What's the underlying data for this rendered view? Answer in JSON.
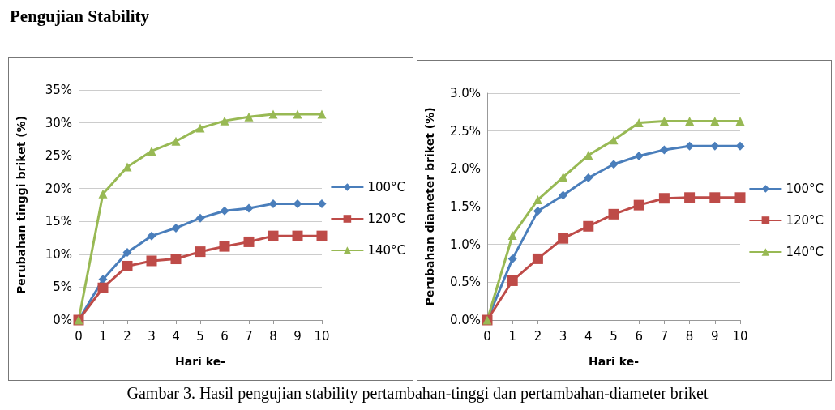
{
  "chart_data": [
    {
      "type": "line",
      "title": "Pengujian Stability",
      "xlabel": "Hari ke-",
      "ylabel": "Perubahan tinggi briket (%)",
      "categories": [
        "0",
        "1",
        "2",
        "3",
        "4",
        "5",
        "6",
        "7",
        "8",
        "9",
        "10"
      ],
      "series": [
        {
          "name": "100°C",
          "color": "#4a7ebb",
          "marker": "diamond",
          "values": [
            0,
            6.2,
            10.3,
            12.8,
            14.0,
            15.5,
            16.6,
            17.0,
            17.7,
            17.7,
            17.7
          ]
        },
        {
          "name": "120°C",
          "color": "#be4b48",
          "marker": "square",
          "values": [
            0,
            4.9,
            8.2,
            9.0,
            9.3,
            10.4,
            11.2,
            11.9,
            12.8,
            12.8,
            12.8
          ]
        },
        {
          "name": "140°C",
          "color": "#98b954",
          "marker": "triangle",
          "values": [
            0,
            19.2,
            23.3,
            25.7,
            27.2,
            29.2,
            30.3,
            30.9,
            31.3,
            31.3,
            31.3
          ]
        }
      ],
      "ylim": [
        0,
        35
      ],
      "yticks": [
        {
          "value": 0,
          "label": "0%"
        },
        {
          "value": 5,
          "label": "5%"
        },
        {
          "value": 10,
          "label": "10%"
        },
        {
          "value": 15,
          "label": "15%"
        },
        {
          "value": 20,
          "label": "20%"
        },
        {
          "value": 25,
          "label": "25%"
        },
        {
          "value": 30,
          "label": "30%"
        },
        {
          "value": 35,
          "label": "35%"
        }
      ],
      "grid": "y",
      "legend": "right",
      "annotations": [
        "Gambar 3. Hasil pengujian stability pertambahan-tinggi dan pertambahan-diameter briket"
      ]
    },
    {
      "type": "line",
      "xlabel": "Hari ke-",
      "ylabel": "Perubahan diameter briket (%)",
      "categories": [
        "0",
        "1",
        "2",
        "3",
        "4",
        "5",
        "6",
        "7",
        "8",
        "9",
        "10"
      ],
      "series": [
        {
          "name": "100°C",
          "color": "#4a7ebb",
          "marker": "diamond",
          "values": [
            0,
            0.81,
            1.44,
            1.65,
            1.88,
            2.06,
            2.17,
            2.25,
            2.3,
            2.3,
            2.3
          ]
        },
        {
          "name": "120°C",
          "color": "#be4b48",
          "marker": "square",
          "values": [
            0,
            0.52,
            0.81,
            1.08,
            1.24,
            1.4,
            1.52,
            1.61,
            1.62,
            1.62,
            1.62
          ]
        },
        {
          "name": "140°C",
          "color": "#98b954",
          "marker": "triangle",
          "values": [
            0,
            1.12,
            1.59,
            1.89,
            2.18,
            2.38,
            2.61,
            2.63,
            2.63,
            2.63,
            2.63
          ]
        }
      ],
      "ylim": [
        0,
        3
      ],
      "yticks": [
        {
          "value": 0,
          "label": "0.0%"
        },
        {
          "value": 0.5,
          "label": "0.5%"
        },
        {
          "value": 1,
          "label": "1.0%"
        },
        {
          "value": 1.5,
          "label": "1.5%"
        },
        {
          "value": 2,
          "label": "2.0%"
        },
        {
          "value": 2.5,
          "label": "2.5%"
        },
        {
          "value": 3,
          "label": "3.0%"
        }
      ],
      "grid": "y",
      "legend": "right"
    }
  ]
}
